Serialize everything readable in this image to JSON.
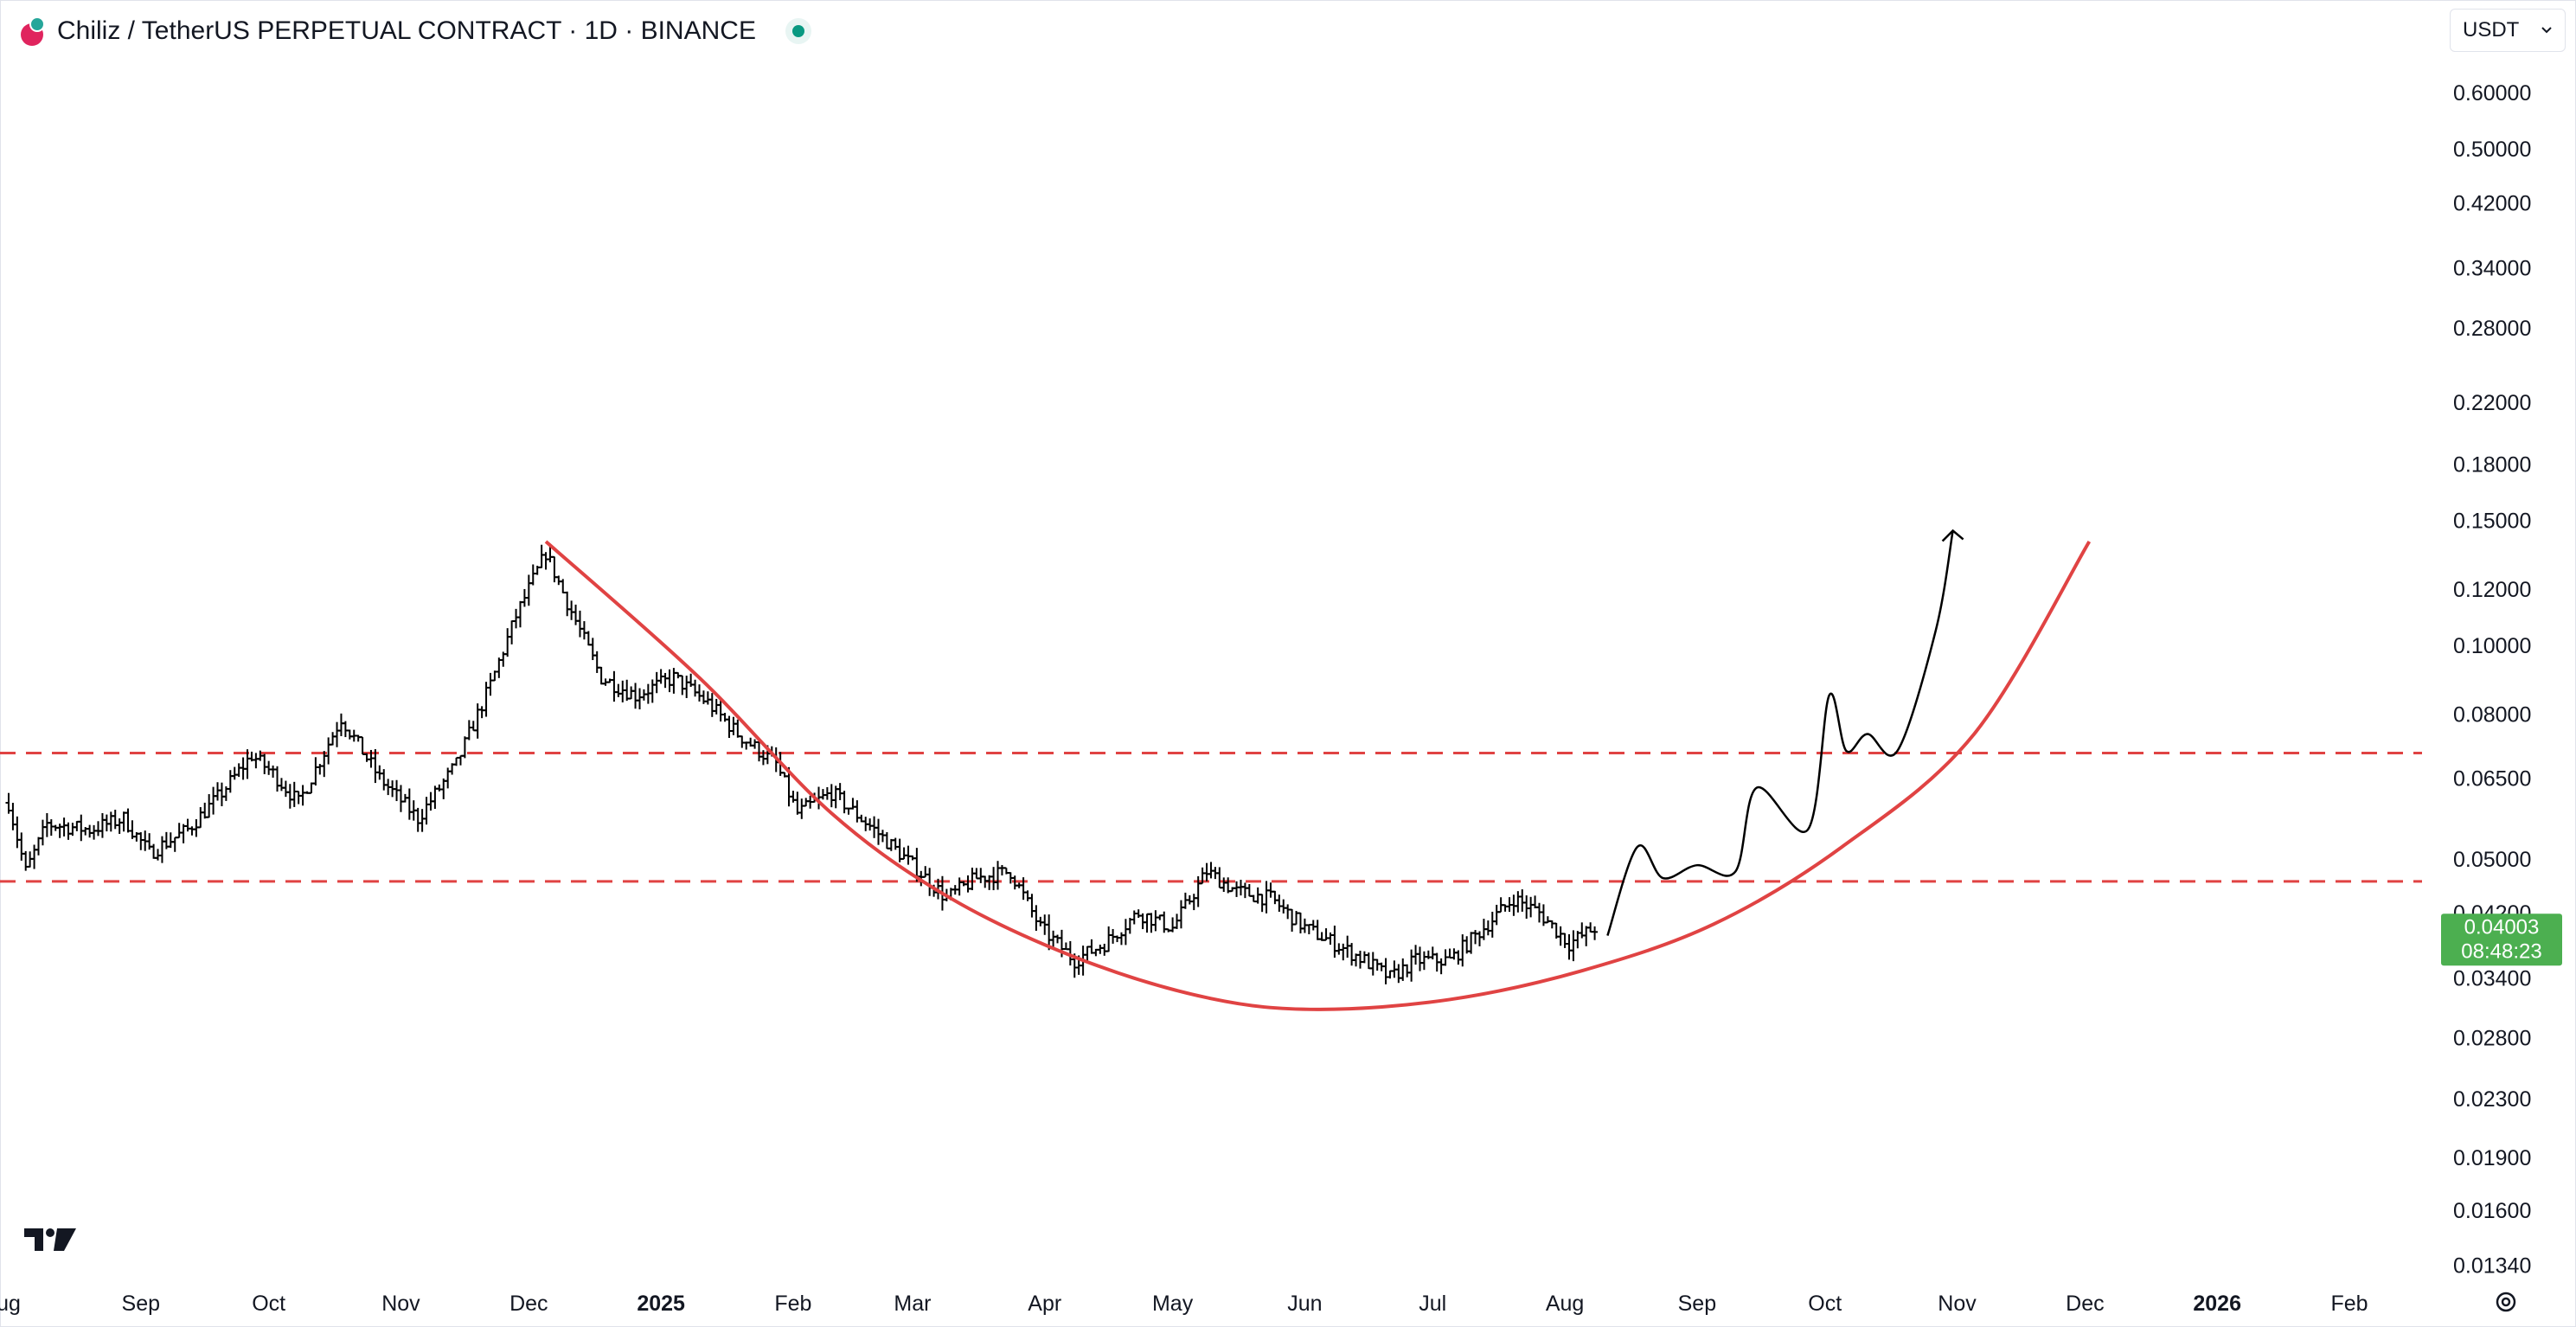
{
  "header": {
    "title": "Chiliz / TetherUS PERPETUAL CONTRACT · 1D · BINANCE",
    "currency": "USDT"
  },
  "price_label": {
    "price": "0.04003",
    "countdown": "08:48:23",
    "color": "#4caf50"
  },
  "icons": {
    "symbol": "chiliz-logo-icon",
    "status": "market-open-dot-icon",
    "brand": "tradingview-logo-icon",
    "settings": "gear-icon",
    "dropdown": "chevron-down-icon"
  },
  "colors": {
    "curve": "#e04343",
    "support_lines": "#e04343",
    "candles": "#000000",
    "projection": "#000000"
  },
  "chart_data": {
    "type": "candlestick",
    "y_scale": "log",
    "ylim": [
      0.0124,
      0.685
    ],
    "y_ticks": [
      "0.60000",
      "0.50000",
      "0.42000",
      "0.34000",
      "0.28000",
      "0.22000",
      "0.18000",
      "0.15000",
      "0.12000",
      "0.10000",
      "0.08000",
      "0.06500",
      "0.05000",
      "0.04200",
      "0.03400",
      "0.02800",
      "0.02300",
      "0.01900",
      "0.01600",
      "0.01340"
    ],
    "x_ticks": [
      {
        "label": "ug",
        "date": "2024-08-01"
      },
      {
        "label": "Sep",
        "date": "2024-09-01"
      },
      {
        "label": "Oct",
        "date": "2024-10-01"
      },
      {
        "label": "Nov",
        "date": "2024-11-01"
      },
      {
        "label": "Dec",
        "date": "2024-12-01"
      },
      {
        "label": "2025",
        "date": "2025-01-01",
        "bold": true
      },
      {
        "label": "Feb",
        "date": "2025-02-01"
      },
      {
        "label": "Mar",
        "date": "2025-03-01"
      },
      {
        "label": "Apr",
        "date": "2025-04-01"
      },
      {
        "label": "May",
        "date": "2025-05-01"
      },
      {
        "label": "Jun",
        "date": "2025-06-01"
      },
      {
        "label": "Jul",
        "date": "2025-07-01"
      },
      {
        "label": "Aug",
        "date": "2025-08-01"
      },
      {
        "label": "Sep",
        "date": "2025-09-01"
      },
      {
        "label": "Oct",
        "date": "2025-10-01"
      },
      {
        "label": "Nov",
        "date": "2025-11-01"
      },
      {
        "label": "Dec",
        "date": "2025-12-01"
      },
      {
        "label": "2026",
        "date": "2026-01-01",
        "bold": true
      },
      {
        "label": "Feb",
        "date": "2026-02-01"
      }
    ],
    "price_path": [
      [
        "2024-08-01",
        0.06
      ],
      [
        "2024-08-05",
        0.048
      ],
      [
        "2024-08-10",
        0.056
      ],
      [
        "2024-08-20",
        0.055
      ],
      [
        "2024-08-28",
        0.057
      ],
      [
        "2024-09-03",
        0.051
      ],
      [
        "2024-09-12",
        0.055
      ],
      [
        "2024-09-20",
        0.062
      ],
      [
        "2024-09-27",
        0.07
      ],
      [
        "2024-10-02",
        0.066
      ],
      [
        "2024-10-08",
        0.06
      ],
      [
        "2024-10-18",
        0.079
      ],
      [
        "2024-10-27",
        0.065
      ],
      [
        "2024-11-05",
        0.057
      ],
      [
        "2024-11-14",
        0.068
      ],
      [
        "2024-11-22",
        0.088
      ],
      [
        "2024-11-28",
        0.11
      ],
      [
        "2024-12-05",
        0.135
      ],
      [
        "2024-12-10",
        0.115
      ],
      [
        "2024-12-18",
        0.09
      ],
      [
        "2024-12-26",
        0.085
      ],
      [
        "2025-01-04",
        0.09
      ],
      [
        "2025-01-12",
        0.083
      ],
      [
        "2025-01-19",
        0.075
      ],
      [
        "2025-01-28",
        0.068
      ],
      [
        "2025-02-02",
        0.058
      ],
      [
        "2025-02-10",
        0.062
      ],
      [
        "2025-02-20",
        0.055
      ],
      [
        "2025-03-01",
        0.049
      ],
      [
        "2025-03-09",
        0.044
      ],
      [
        "2025-03-16",
        0.047
      ],
      [
        "2025-03-24",
        0.048
      ],
      [
        "2025-03-31",
        0.04
      ],
      [
        "2025-04-08",
        0.036
      ],
      [
        "2025-04-15",
        0.038
      ],
      [
        "2025-04-23",
        0.042
      ],
      [
        "2025-05-01",
        0.04
      ],
      [
        "2025-05-09",
        0.048
      ],
      [
        "2025-05-16",
        0.045
      ],
      [
        "2025-05-24",
        0.044
      ],
      [
        "2025-06-01",
        0.04
      ],
      [
        "2025-06-08",
        0.038
      ],
      [
        "2025-06-15",
        0.036
      ],
      [
        "2025-06-21",
        0.034
      ],
      [
        "2025-06-27",
        0.036
      ],
      [
        "2025-07-05",
        0.036
      ],
      [
        "2025-07-13",
        0.04
      ],
      [
        "2025-07-20",
        0.044
      ],
      [
        "2025-07-26",
        0.042
      ],
      [
        "2025-08-02",
        0.038
      ],
      [
        "2025-08-08",
        0.04
      ]
    ],
    "annotations": {
      "support_levels": [
        0.0465,
        0.0705
      ],
      "rounded_bottom_curve": [
        [
          "2024-12-05",
          0.14
        ],
        [
          "2025-01-10",
          0.09
        ],
        [
          "2025-02-10",
          0.058
        ],
        [
          "2025-03-10",
          0.044
        ],
        [
          "2025-04-10",
          0.036
        ],
        [
          "2025-05-10",
          0.0318
        ],
        [
          "2025-06-04",
          0.0307
        ],
        [
          "2025-07-05",
          0.0317
        ],
        [
          "2025-08-05",
          0.0348
        ],
        [
          "2025-09-05",
          0.0405
        ],
        [
          "2025-10-05",
          0.052
        ],
        [
          "2025-11-05",
          0.075
        ],
        [
          "2025-12-02",
          0.14
        ]
      ],
      "projection_path": [
        [
          "2025-08-11",
          0.039
        ],
        [
          "2025-08-18",
          0.052
        ],
        [
          "2025-08-24",
          0.047
        ],
        [
          "2025-09-01",
          0.049
        ],
        [
          "2025-09-10",
          0.048
        ],
        [
          "2025-09-15",
          0.063
        ],
        [
          "2025-09-27",
          0.055
        ],
        [
          "2025-10-02",
          0.085
        ],
        [
          "2025-10-06",
          0.071
        ],
        [
          "2025-10-11",
          0.075
        ],
        [
          "2025-10-18",
          0.071
        ],
        [
          "2025-10-27",
          0.105
        ],
        [
          "2025-10-31",
          0.145
        ]
      ]
    }
  }
}
